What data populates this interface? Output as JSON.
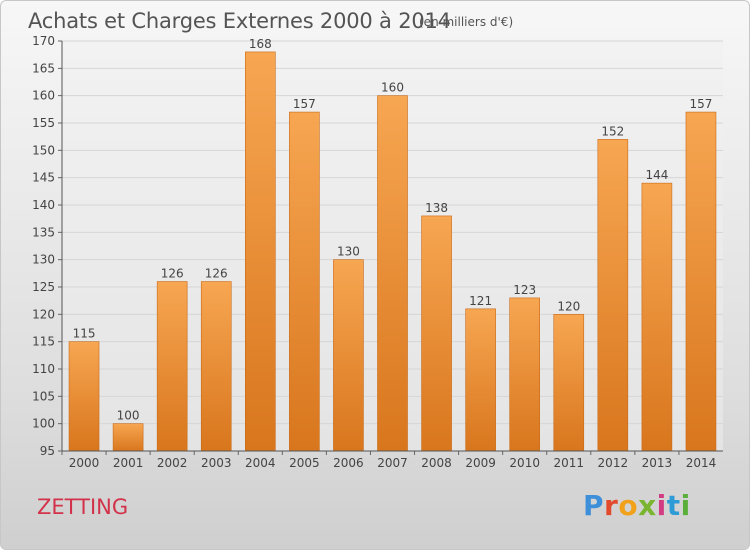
{
  "header": {
    "title": "Achats et Charges Externes 2000 à 2014",
    "unit": "(en milliers d'€)"
  },
  "footer": {
    "location": "ZETTING",
    "logo_letters": [
      "P",
      "r",
      "o",
      "x",
      "i",
      "t",
      "i"
    ]
  },
  "colors": {
    "bar_light": "#f7a652",
    "bar_dark": "#d8761d",
    "axis_text": "#444444",
    "grid": "#d6d6d6",
    "location": "#d2334a"
  },
  "chart_data": {
    "type": "bar",
    "title": "Achats et Charges Externes 2000 à 2014",
    "subtitle": "(en milliers d'€)",
    "categories": [
      "2000",
      "2001",
      "2002",
      "2003",
      "2004",
      "2005",
      "2006",
      "2007",
      "2008",
      "2009",
      "2010",
      "2011",
      "2012",
      "2013",
      "2014"
    ],
    "values": [
      115,
      100,
      126,
      126,
      168,
      157,
      130,
      160,
      138,
      121,
      123,
      120,
      152,
      144,
      157
    ],
    "ylim": [
      95,
      170
    ],
    "yticks": [
      95,
      100,
      105,
      110,
      115,
      120,
      125,
      130,
      135,
      140,
      145,
      150,
      155,
      160,
      165,
      170
    ],
    "xlabel": "",
    "ylabel": "",
    "grid": true,
    "legend": "none"
  }
}
